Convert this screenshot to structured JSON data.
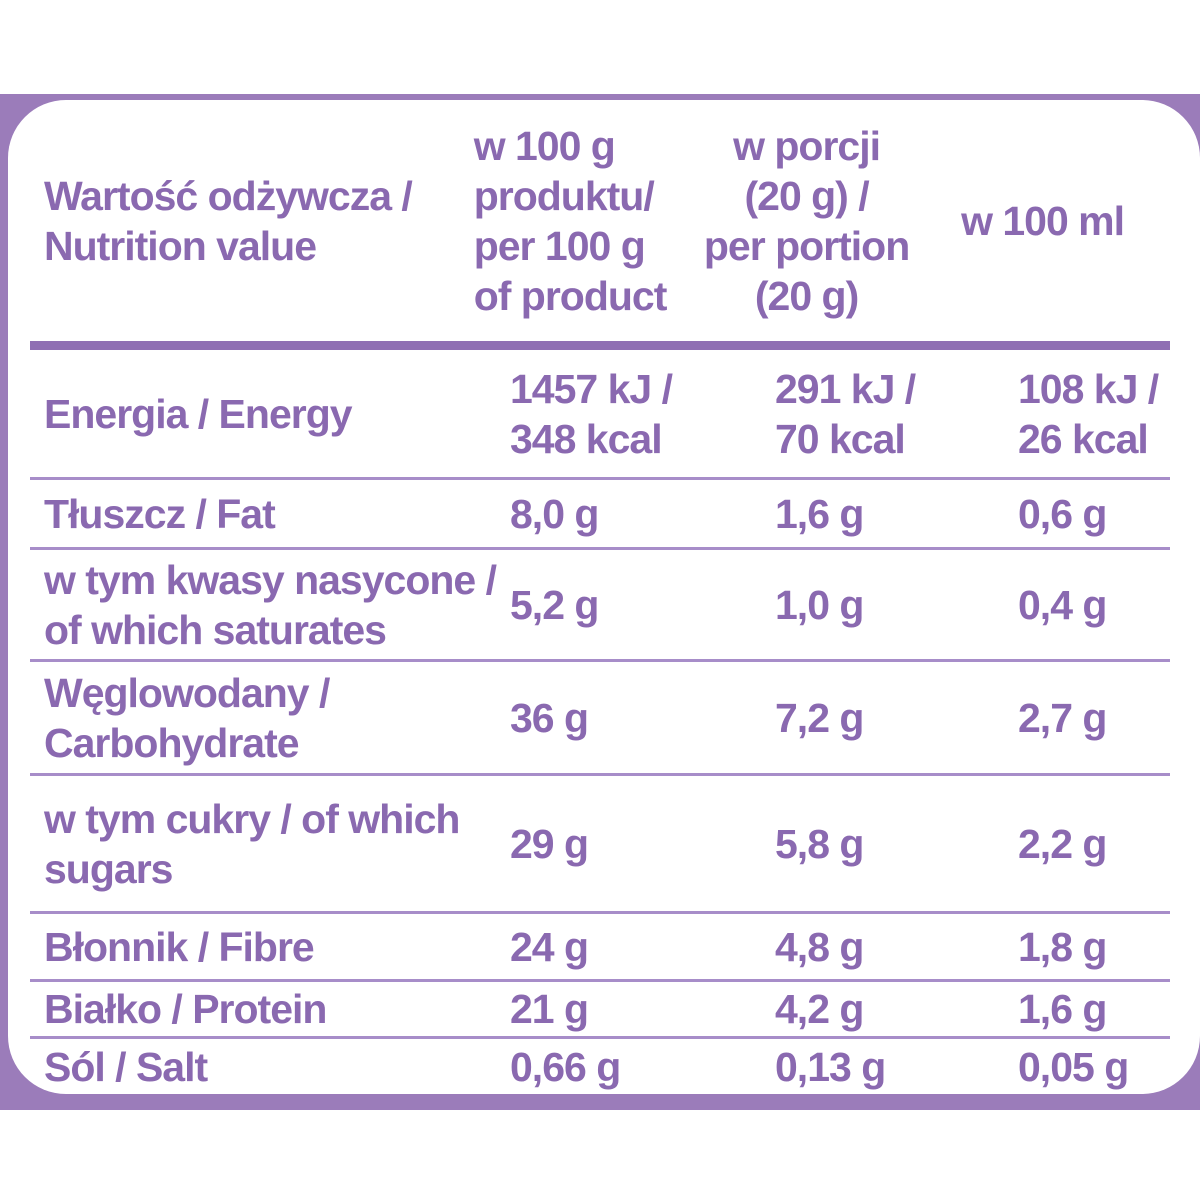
{
  "colors": {
    "band_purple": "#9b7cba",
    "text_purple": "#8a69b0",
    "thin_rule_purple": "#a78dc9",
    "thick_rule_purple": "#8f6fb3",
    "card_background": "#ffffff"
  },
  "table": {
    "header": {
      "col1": [
        "Wartość odżywcza /",
        "Nutrition value"
      ],
      "col2": [
        "w 100 g",
        "produktu/",
        "per 100 g",
        "of product"
      ],
      "col3": [
        "w porcji",
        "(20 g) /",
        "per portion",
        "(20 g)"
      ],
      "col4": [
        "w 100 ml"
      ]
    },
    "rows": [
      {
        "label": [
          "Energia / Energy"
        ],
        "per100g": [
          "1457 kJ /",
          "348 kcal"
        ],
        "portion": [
          "291 kJ /",
          "70 kcal"
        ],
        "per100ml": [
          "108 kJ /",
          "26 kcal"
        ]
      },
      {
        "label": [
          "Tłuszcz / Fat"
        ],
        "per100g": [
          "8,0 g"
        ],
        "portion": [
          "1,6 g"
        ],
        "per100ml": [
          "0,6 g"
        ]
      },
      {
        "label": [
          "w tym kwasy nasycone /",
          "of which saturates"
        ],
        "per100g": [
          "5,2 g"
        ],
        "portion": [
          "1,0 g"
        ],
        "per100ml": [
          "0,4 g"
        ]
      },
      {
        "label": [
          "Węglowodany /",
          "Carbohydrate"
        ],
        "per100g": [
          "36 g"
        ],
        "portion": [
          "7,2 g"
        ],
        "per100ml": [
          "2,7 g"
        ]
      },
      {
        "label": [
          "w tym cukry / of which",
          "sugars"
        ],
        "per100g": [
          "29 g"
        ],
        "portion": [
          "5,8 g"
        ],
        "per100ml": [
          "2,2 g"
        ]
      },
      {
        "label": [
          "Błonnik / Fibre"
        ],
        "per100g": [
          "24 g"
        ],
        "portion": [
          "4,8 g"
        ],
        "per100ml": [
          "1,8 g"
        ]
      },
      {
        "label": [
          "Białko / Protein"
        ],
        "per100g": [
          "21 g"
        ],
        "portion": [
          "4,2 g"
        ],
        "per100ml": [
          "1,6 g"
        ]
      },
      {
        "label": [
          "Sól / Salt"
        ],
        "per100g": [
          "0,66 g"
        ],
        "portion": [
          "0,13 g"
        ],
        "per100ml": [
          "0,05 g"
        ]
      }
    ]
  }
}
